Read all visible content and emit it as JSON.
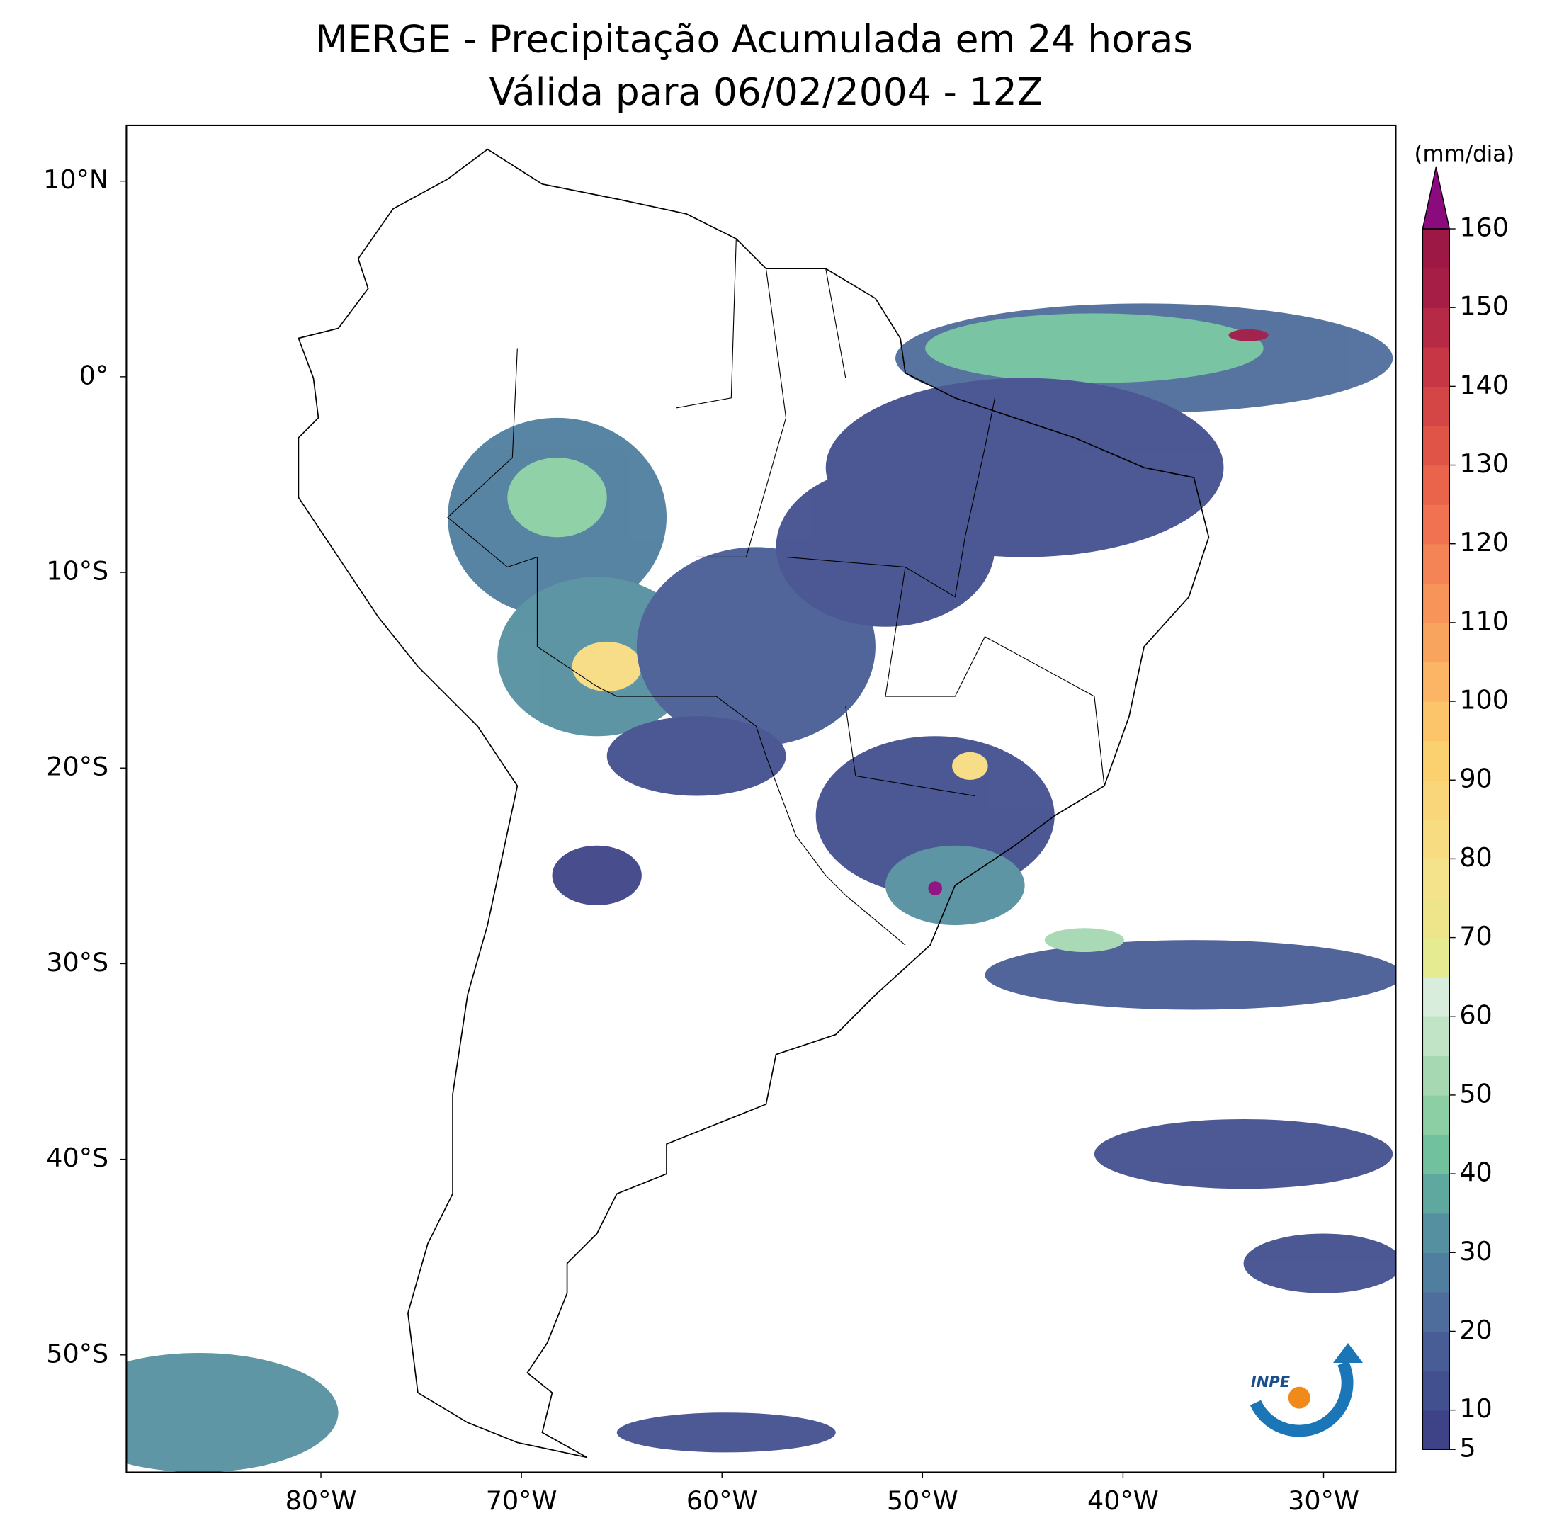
{
  "chart_data": {
    "type": "map",
    "title": "MERGE - Precipitação Acumulada em 24 horas",
    "subtitle": "Válida para 06/02/2004 - 12Z",
    "xlim": [
      -89.7,
      -26.4
    ],
    "ylim": [
      -56,
      12.85
    ],
    "xticks": [
      {
        "value": -80,
        "label": "80°W"
      },
      {
        "value": -70,
        "label": "70°W"
      },
      {
        "value": -60,
        "label": "60°W"
      },
      {
        "value": -50,
        "label": "50°W"
      },
      {
        "value": -40,
        "label": "40°W"
      },
      {
        "value": -30,
        "label": "30°W"
      }
    ],
    "yticks": [
      {
        "value": 10,
        "label": "10°N"
      },
      {
        "value": 0,
        "label": "0°"
      },
      {
        "value": -10,
        "label": "10°S"
      },
      {
        "value": -20,
        "label": "20°S"
      },
      {
        "value": -30,
        "label": "30°S"
      },
      {
        "value": -40,
        "label": "40°S"
      },
      {
        "value": -50,
        "label": "50°S"
      }
    ],
    "colorbar": {
      "label": "(mm/dia)",
      "levels": [
        5,
        10,
        15,
        20,
        25,
        30,
        35,
        40,
        45,
        50,
        55,
        60,
        65,
        70,
        75,
        80,
        85,
        90,
        95,
        100,
        105,
        110,
        115,
        120,
        125,
        130,
        135,
        140,
        145,
        150,
        155,
        160
      ],
      "colors": [
        "#3e4388",
        "#43508f",
        "#485d96",
        "#4f6d9c",
        "#4f7e9e",
        "#5590a0",
        "#5ea89f",
        "#72c19e",
        "#8ccfa4",
        "#a6d9b2",
        "#c1e4c6",
        "#d8eddc",
        "#e5eb91",
        "#eee58a",
        "#f4e38a",
        "#f7dc82",
        "#f9d67a",
        "#fbd16f",
        "#fcc56a",
        "#fbb565",
        "#f9a45e",
        "#f79459",
        "#f48455",
        "#f07250",
        "#ea644b",
        "#e05447",
        "#d44545",
        "#c63645",
        "#b72a45",
        "#a61e46",
        "#9e1845"
      ],
      "extend_color": "#8b0a7e",
      "ticks": [
        5,
        10,
        20,
        30,
        40,
        50,
        60,
        70,
        80,
        90,
        100,
        110,
        120,
        130,
        140,
        150,
        160
      ]
    },
    "logo": "INPE"
  }
}
